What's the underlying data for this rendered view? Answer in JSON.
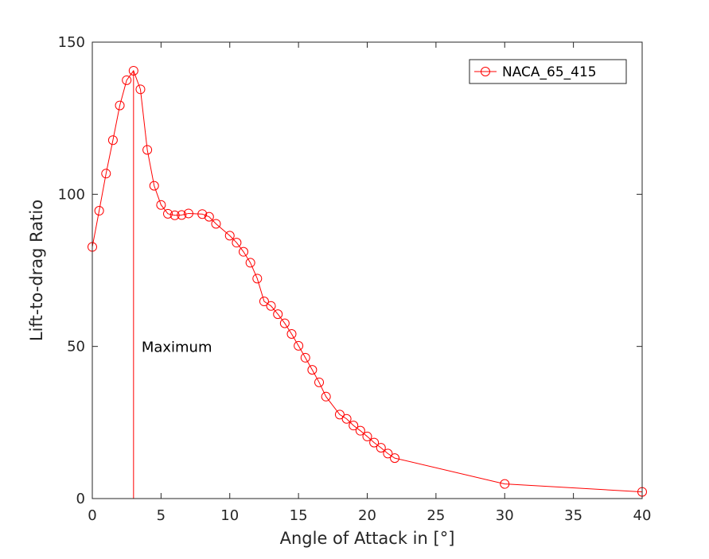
{
  "chart_data": {
    "type": "line",
    "title": "",
    "xlabel": "Angle of Attack in [°]",
    "ylabel": "Lift-to-drag Ratio",
    "xlim": [
      0,
      40
    ],
    "ylim": [
      0,
      150
    ],
    "xticks": [
      0,
      5,
      10,
      15,
      20,
      25,
      30,
      35,
      40
    ],
    "yticks": [
      0,
      50,
      100,
      150
    ],
    "xtick_labels": [
      "0",
      "5",
      "10",
      "15",
      "20",
      "25",
      "30",
      "35",
      "40"
    ],
    "ytick_labels": [
      "0",
      "50",
      "100",
      "150"
    ],
    "grid": false,
    "legend": {
      "placement": "top-right",
      "entries": [
        "NACA_65_415"
      ]
    },
    "series": [
      {
        "name": "NACA_65_415",
        "color": "#ff0000",
        "marker": "circle",
        "x": [
          0,
          0.5,
          1,
          1.5,
          2,
          2.5,
          3,
          3.5,
          4,
          4.5,
          5,
          5.5,
          6,
          6.5,
          7,
          8,
          8.5,
          9,
          10,
          10.5,
          11,
          11.5,
          12,
          12.5,
          13,
          13.5,
          14,
          14.5,
          15,
          15.5,
          16,
          16.5,
          17,
          18,
          18.5,
          19,
          19.5,
          20,
          20.5,
          21,
          21.5,
          22,
          30,
          40
        ],
        "y": [
          82.7,
          94.6,
          106.8,
          117.8,
          129.2,
          137.5,
          140.6,
          134.5,
          114.6,
          102.8,
          96.5,
          93.6,
          93.1,
          93.2,
          93.7,
          93.5,
          92.6,
          90.3,
          86.4,
          84.1,
          81.1,
          77.5,
          72.3,
          64.8,
          63.3,
          60.6,
          57.6,
          54.1,
          50.2,
          46.3,
          42.3,
          38.2,
          33.5,
          27.6,
          26.2,
          24.0,
          22.3,
          20.4,
          18.4,
          16.7,
          14.8,
          13.3,
          4.8,
          2.2
        ]
      }
    ],
    "annotations": [
      {
        "text": "Maximum",
        "x": 3,
        "y": 50,
        "vline_x": 3
      }
    ]
  }
}
